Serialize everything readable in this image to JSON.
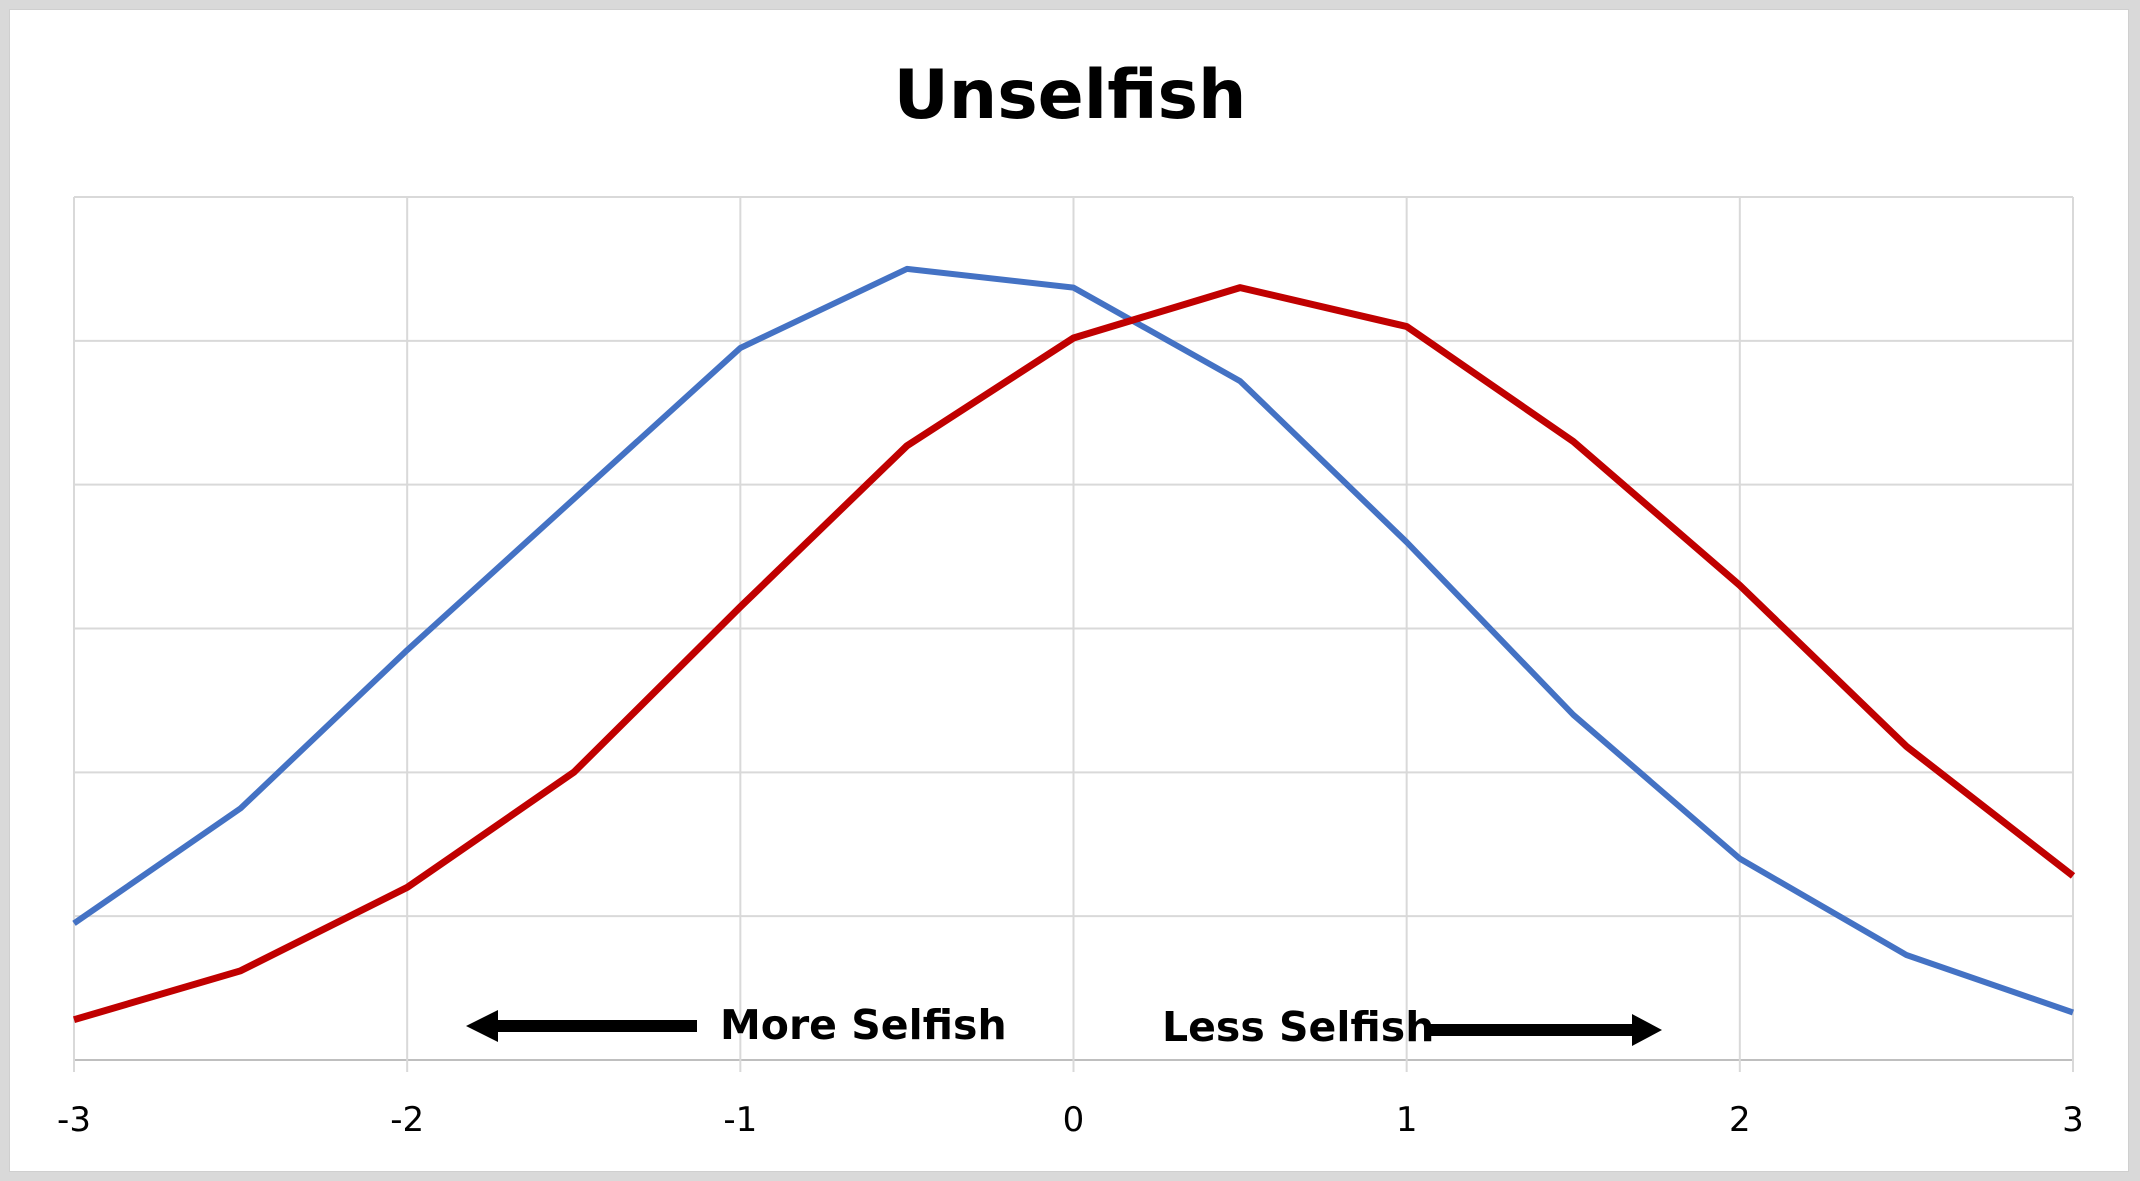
{
  "chart_data": {
    "type": "line",
    "title": "Unselfish",
    "xlabel": "",
    "ylabel": "",
    "xlim": [
      -3,
      3
    ],
    "ylim": [
      0,
      6
    ],
    "x_ticks": [
      "-3",
      "-2",
      "-1",
      "0",
      "1",
      "2",
      "3"
    ],
    "y_tick_labels_shown": false,
    "grid": true,
    "legend": "none",
    "x": [
      -3,
      -2.5,
      -2,
      -1.5,
      -1,
      -0.5,
      0,
      0.5,
      1,
      1.5,
      2,
      2.5,
      3
    ],
    "series": [
      {
        "color": "#4472c4",
        "values": [
          0.95,
          1.75,
          2.85,
          3.9,
          4.95,
          5.5,
          5.37,
          4.72,
          3.6,
          2.4,
          1.4,
          0.73,
          0.33
        ]
      },
      {
        "color": "#c00000",
        "values": [
          0.28,
          0.62,
          1.2,
          2.0,
          3.15,
          4.27,
          5.02,
          5.37,
          5.1,
          4.3,
          3.3,
          2.18,
          1.28
        ]
      }
    ],
    "annotations": [
      {
        "text": "More Selfish",
        "arrow": "left"
      },
      {
        "text": "Less Selfish",
        "arrow": "right"
      }
    ]
  }
}
